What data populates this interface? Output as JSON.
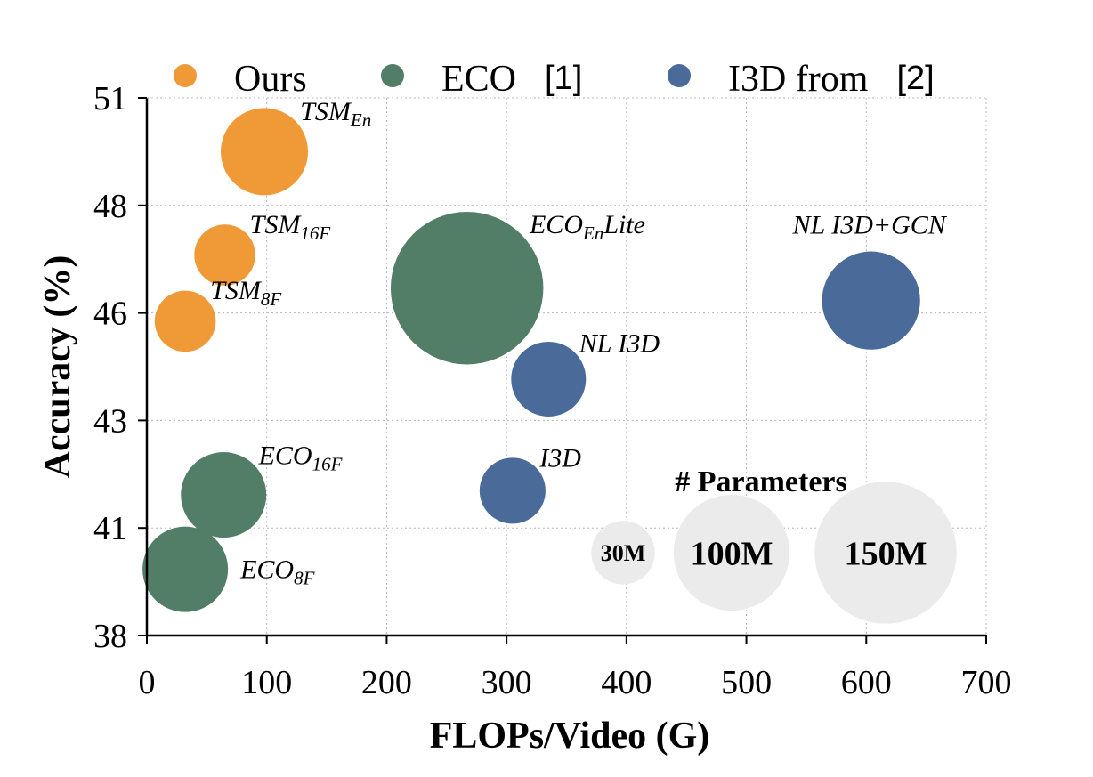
{
  "chart_data": {
    "type": "bubble",
    "xlabel": "FLOPs/Video (G)",
    "ylabel": "Accuracy (%)",
    "xlim": [
      0,
      700
    ],
    "ylim": [
      38,
      51
    ],
    "x_ticks": [
      "0",
      "100",
      "200",
      "300",
      "400",
      "500",
      "600",
      "700"
    ],
    "x_tick_values": [
      0,
      100,
      200,
      300,
      400,
      500,
      600,
      700
    ],
    "y_ticks": [
      "38",
      "41",
      "43",
      "46",
      "48",
      "51"
    ],
    "y_tick_values": [
      38,
      40.6,
      43.2,
      45.8,
      48.4,
      51
    ],
    "grid": true,
    "legend_position": "top",
    "legend": [
      {
        "label": "Ours",
        "ref": "",
        "color": "#EF9A36"
      },
      {
        "label": "ECO",
        "ref": "[1]",
        "color": "#527D67"
      },
      {
        "label": "I3D from",
        "ref": "[2]",
        "color": "#4A6B99"
      }
    ],
    "points": [
      {
        "label": "TSM",
        "sub": "En",
        "suffix": "",
        "x": 98,
        "y": 49.7,
        "params_m": 49,
        "color": "#EF9A36",
        "label_anchor": "right-top"
      },
      {
        "label": "TSM",
        "sub": "16F",
        "suffix": "",
        "x": 65,
        "y": 47.2,
        "params_m": 24,
        "color": "#EF9A36",
        "label_anchor": "right-top"
      },
      {
        "label": "TSM",
        "sub": "8F",
        "suffix": "",
        "x": 32,
        "y": 45.6,
        "params_m": 24,
        "color": "#EF9A36",
        "label_anchor": "right-top"
      },
      {
        "label": "ECO",
        "sub": "En",
        "suffix": "Lite",
        "x": 267,
        "y": 46.4,
        "params_m": 150,
        "color": "#527D67",
        "label_anchor": "right-top"
      },
      {
        "label": "ECO",
        "sub": "16F",
        "suffix": "",
        "x": 64,
        "y": 41.4,
        "params_m": 47,
        "color": "#527D67",
        "label_anchor": "right-top"
      },
      {
        "label": "ECO",
        "sub": "8F",
        "suffix": "",
        "x": 32,
        "y": 39.6,
        "params_m": 47,
        "color": "#527D67",
        "label_anchor": "right"
      },
      {
        "label": "NL I3D+GCN",
        "sub": "",
        "suffix": "",
        "x": 604,
        "y": 46.1,
        "params_m": 62,
        "color": "#4A6B99",
        "label_anchor": "above"
      },
      {
        "label": "NL I3D",
        "sub": "",
        "suffix": "",
        "x": 335,
        "y": 44.2,
        "params_m": 36,
        "color": "#4A6B99",
        "label_anchor": "right-top"
      },
      {
        "label": "I3D",
        "sub": "",
        "suffix": "",
        "x": 305,
        "y": 41.5,
        "params_m": 28,
        "color": "#4A6B99",
        "label_anchor": "right-top"
      }
    ],
    "size_legend": {
      "title": "# Parameters",
      "items": [
        {
          "label": "30M",
          "params_m": 30
        },
        {
          "label": "100M",
          "params_m": 100
        },
        {
          "label": "150M",
          "params_m": 150
        }
      ],
      "color": "#EBEBEB"
    }
  }
}
